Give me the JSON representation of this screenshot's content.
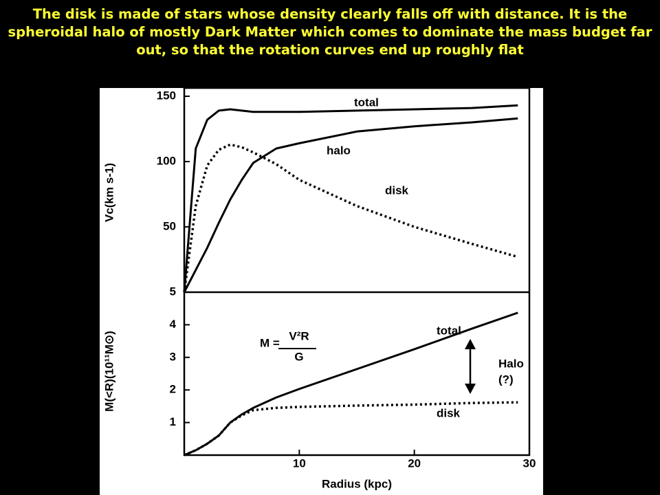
{
  "caption": "The disk is made of stars whose density clearly falls off with distance. It is the spheroidal halo of mostly Dark Matter which comes to dominate the mass budget far out, so that the rotation curves end up roughly flat",
  "chart_data": [
    {
      "type": "line",
      "ylabel": "Vc(km s-1)",
      "xlim": [
        0,
        30
      ],
      "ylim": [
        0,
        150
      ],
      "yticks": [
        50,
        100,
        150
      ],
      "x": [
        0,
        1,
        2,
        3,
        4,
        5,
        6,
        8,
        10,
        15,
        20,
        25,
        29
      ],
      "series": [
        {
          "name": "total",
          "color": "#000000",
          "style": "solid",
          "values": [
            0,
            110,
            132,
            139,
            140,
            139,
            138,
            138,
            138,
            139,
            140,
            141,
            143
          ]
        },
        {
          "name": "halo",
          "color": "#000000",
          "style": "solid",
          "values": [
            0,
            17,
            34,
            53,
            71,
            86,
            99,
            110,
            114,
            123,
            127,
            130,
            133
          ]
        },
        {
          "name": "disk",
          "color": "#000000",
          "style": "dotted",
          "values": [
            0,
            66,
            97,
            109,
            113,
            111,
            107,
            98,
            86,
            66,
            50,
            37,
            27
          ]
        }
      ],
      "annotations": [
        "total",
        "halo",
        "disk"
      ]
    },
    {
      "type": "line",
      "ylabel": "M(<R)(10¹¹M⊙)",
      "xlabel": "Radius (kpc)",
      "xlim": [
        0,
        30
      ],
      "ylim": [
        0,
        5
      ],
      "xticks": [
        10,
        20,
        30
      ],
      "yticks": [
        1,
        2,
        3,
        4,
        5
      ],
      "x": [
        0,
        1,
        2,
        3,
        4,
        5,
        6,
        8,
        10,
        15,
        20,
        25,
        29
      ],
      "series": [
        {
          "name": "total",
          "color": "#000000",
          "style": "solid",
          "values": [
            0,
            0.15,
            0.35,
            0.6,
            1.0,
            1.25,
            1.45,
            1.77,
            2.03,
            2.64,
            3.25,
            3.88,
            4.37
          ]
        },
        {
          "name": "disk",
          "color": "#000000",
          "style": "dotted",
          "values": [
            0,
            0.15,
            0.35,
            0.6,
            1.0,
            1.22,
            1.38,
            1.45,
            1.48,
            1.52,
            1.55,
            1.6,
            1.62
          ]
        }
      ],
      "annotations": [
        "total",
        "disk",
        "Halo",
        "(?)",
        "M =",
        "V²R",
        "G"
      ]
    }
  ]
}
